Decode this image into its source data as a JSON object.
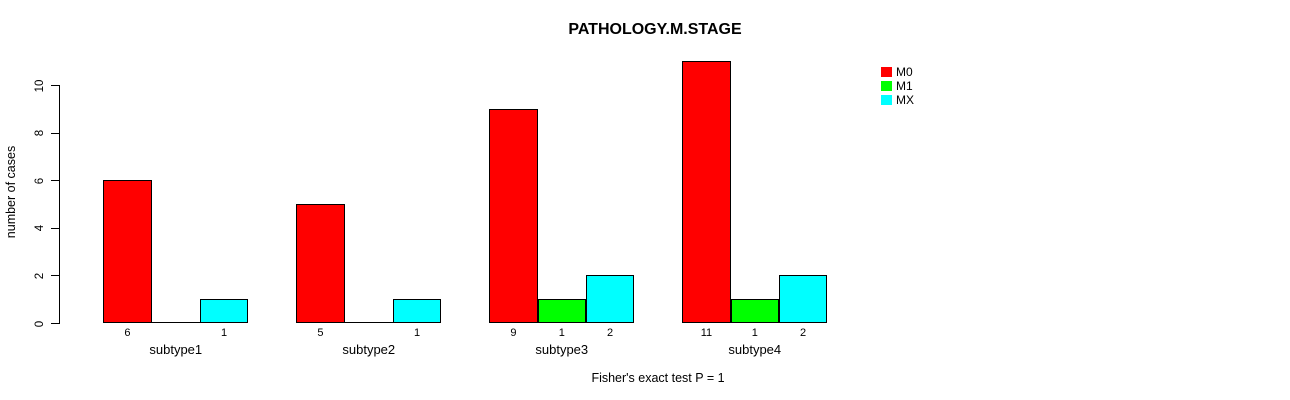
{
  "chart_data": {
    "type": "bar",
    "grouped": true,
    "title": "PATHOLOGY.M.STAGE",
    "xlabel": "",
    "ylabel": "number of cases",
    "annotation": "Fisher's exact test P = 1",
    "categories": [
      "subtype1",
      "subtype2",
      "subtype3",
      "subtype4"
    ],
    "series": [
      {
        "name": "M0",
        "color": "#FF0000",
        "values": [
          6,
          5,
          9,
          11
        ],
        "bar_labels": [
          "6",
          "5",
          "9",
          "11"
        ]
      },
      {
        "name": "M1",
        "color": "#00FF00",
        "values": [
          0,
          0,
          1,
          1
        ],
        "bar_labels": [
          "",
          "",
          "1",
          "1"
        ]
      },
      {
        "name": "MX",
        "color": "#00FFFF",
        "values": [
          1,
          1,
          2,
          2
        ],
        "bar_labels": [
          "1",
          "1",
          "2",
          "2"
        ]
      }
    ],
    "ylim": [
      0,
      10
    ],
    "yticks": [
      "0",
      "2",
      "4",
      "6",
      "8",
      "10"
    ],
    "grid": false,
    "legend_position": "top-right-inside",
    "bar_outline_color": "#000000",
    "text_color": "#000000"
  }
}
